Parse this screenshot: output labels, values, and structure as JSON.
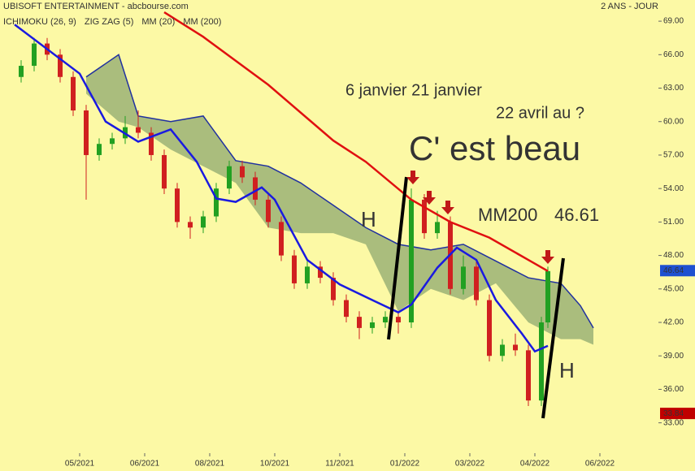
{
  "chart_data": {
    "type": "candlestick",
    "title": "UBISOFT ENTERTAINMENT - abcbourse.com",
    "period": "2 ANS - JOUR",
    "up_color": "#22a022",
    "down_color": "#d02020",
    "x": [
      2,
      4,
      6,
      8,
      10,
      12,
      14,
      16,
      18,
      20,
      22,
      24,
      26,
      28,
      30,
      32,
      34,
      36,
      38,
      40,
      42,
      44,
      46,
      48,
      50,
      52,
      54,
      56,
      58,
      60,
      62,
      64,
      66,
      68,
      70,
      72,
      74,
      76,
      78,
      80,
      82,
      83
    ],
    "open": [
      64,
      65,
      67,
      66,
      64,
      61,
      57,
      58,
      58.5,
      59.5,
      59,
      57,
      54,
      51,
      50.5,
      51.5,
      54,
      56,
      55,
      53,
      51,
      48,
      45.5,
      47,
      46,
      44,
      42.5,
      41.5,
      42,
      42.5,
      42,
      53,
      50,
      51,
      45,
      47,
      44,
      39,
      40,
      39.5,
      35,
      42
    ],
    "high": [
      65.5,
      67.5,
      67.5,
      66.5,
      64.5,
      61.5,
      58.5,
      59,
      60.5,
      61,
      59.5,
      57.5,
      54.5,
      51.5,
      52,
      54.5,
      56.5,
      56.5,
      55.5,
      53.5,
      51.5,
      48.5,
      47.5,
      47.5,
      46.5,
      44.5,
      43,
      42.5,
      43,
      43,
      54,
      53.5,
      52,
      51.5,
      48,
      47.5,
      44.5,
      40.5,
      41,
      40,
      42.5,
      47
    ],
    "low": [
      63.5,
      64.5,
      65.5,
      63.5,
      60.5,
      53,
      56.5,
      57.5,
      58,
      58.5,
      56.5,
      53.5,
      50.5,
      49.5,
      50,
      51,
      53.5,
      54.5,
      52.5,
      50.5,
      47.5,
      45,
      45,
      45.5,
      43.5,
      42,
      40.5,
      41,
      41.5,
      41,
      41.5,
      49.5,
      49.5,
      44.5,
      44.5,
      43.5,
      38.5,
      38.5,
      39,
      34.5,
      34.5,
      41.5
    ],
    "close": [
      65,
      67,
      66,
      64,
      61,
      57,
      58,
      58.5,
      59.5,
      59,
      57,
      54,
      51,
      50.5,
      51.5,
      54,
      56,
      55,
      53,
      51,
      48,
      45.5,
      47,
      46,
      44,
      42.5,
      41.5,
      42,
      42.5,
      42,
      53,
      50,
      51,
      45,
      47,
      44,
      39,
      40,
      39.5,
      35,
      42,
      46.6
    ],
    "indicators": [
      {
        "name": "ICHIMOKU (26, 9)",
        "color": "#d01818",
        "fill": "#8fa870",
        "edge": "#2030a0",
        "x": [
          12,
          17,
          20,
          25,
          30,
          35,
          40,
          45,
          50,
          55,
          60,
          65,
          70,
          75,
          80,
          85,
          88,
          90
        ],
        "top": [
          64,
          66,
          60.5,
          60,
          60.5,
          56.5,
          56,
          54.5,
          52.5,
          50.5,
          49,
          48.5,
          49,
          47.5,
          46,
          45.5,
          43.5,
          41.5
        ],
        "bottom": [
          62.5,
          60,
          59.5,
          57.5,
          56,
          54.5,
          50.5,
          50,
          50,
          49,
          43,
          45,
          44,
          45.5,
          42,
          40.5,
          40.5,
          40
        ]
      },
      {
        "name": "ZIG ZAG (5)",
        "color": "#000000"
      },
      {
        "name": "MM (20)",
        "color": "#1a1ae0",
        "x": [
          1,
          11,
          15,
          20,
          25,
          29,
          32,
          35,
          39,
          41,
          46,
          51,
          56,
          60,
          62,
          66,
          69,
          72,
          75,
          79,
          81,
          83
        ],
        "values": [
          68.7,
          64.3,
          60,
          58.2,
          59.3,
          56.4,
          53.1,
          52.8,
          54.1,
          53,
          47.6,
          45.4,
          44,
          42.9,
          43.6,
          46.9,
          48.7,
          47.6,
          44,
          41,
          39.4,
          39.9
        ]
      },
      {
        "name": "MM (200)",
        "color": "#e01010",
        "x": [
          24,
          30,
          40,
          50,
          55,
          62,
          68,
          74,
          80,
          83
        ],
        "values": [
          69.8,
          67.6,
          63.3,
          58.3,
          56.4,
          53,
          51,
          49.6,
          47.6,
          46.6
        ]
      }
    ],
    "price_labels": [
      {
        "value": 46.64,
        "color": "#1e50d0"
      },
      {
        "value": 33.84,
        "color": "#c00000"
      }
    ],
    "annotations": [
      "6 janvier 21 janvier",
      "22 avril au ?",
      "C' est beau",
      "MM200",
      "46.61",
      "H",
      "H"
    ],
    "xlim": [
      0,
      100
    ],
    "xticks": [
      {
        "value": 11,
        "label": "05/2021"
      },
      {
        "value": 21,
        "label": "06/2021"
      },
      {
        "value": 31,
        "label": "08/2021"
      },
      {
        "value": 41,
        "label": "10/2021"
      },
      {
        "value": 51,
        "label": "11/2021"
      },
      {
        "value": 61,
        "label": "01/2022"
      },
      {
        "value": 71,
        "label": "03/2022"
      },
      {
        "value": 81,
        "label": "04/2022"
      },
      {
        "value": 91,
        "label": "06/2022"
      }
    ],
    "ylim": [
      30.5,
      70.9
    ],
    "yticks": [
      {
        "value": 33,
        "label": "33.00"
      },
      {
        "value": 36,
        "label": "36.00"
      },
      {
        "value": 39,
        "label": "39.00"
      },
      {
        "value": 42,
        "label": "42.00"
      },
      {
        "value": 45,
        "label": "45.00"
      },
      {
        "value": 48,
        "label": "48.00"
      },
      {
        "value": 51,
        "label": "51.00"
      },
      {
        "value": 54,
        "label": "54.00"
      },
      {
        "value": 57,
        "label": "57.00"
      },
      {
        "value": 60,
        "label": "60.00"
      },
      {
        "value": 63,
        "label": "63.00"
      },
      {
        "value": 66,
        "label": "66.00"
      },
      {
        "value": 69,
        "label": "69.00"
      }
    ]
  }
}
